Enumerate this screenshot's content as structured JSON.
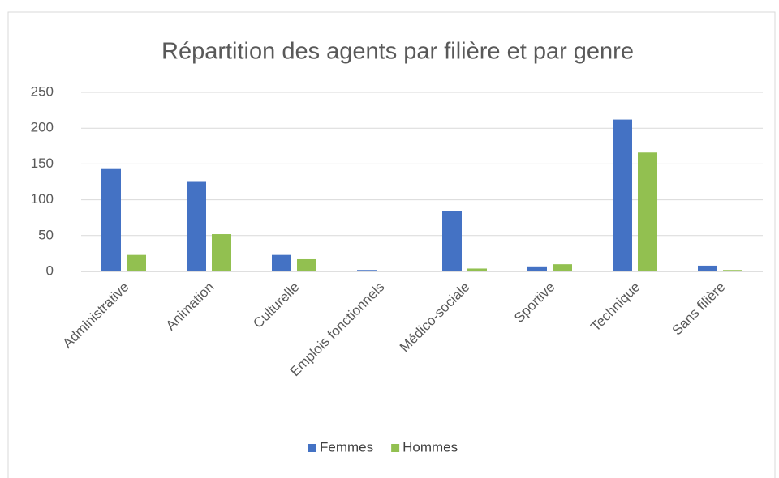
{
  "chart_data": {
    "type": "bar",
    "title": "Répartition des agents par filière et par genre",
    "categories": [
      "Administrative",
      "Animation",
      "Culturelle",
      "Emplois fonctionnels",
      "Médico-sociale",
      "Sportive",
      "Technique",
      "Sans filière"
    ],
    "series": [
      {
        "name": "Femmes",
        "color": "#4472c4",
        "values": [
          144,
          125,
          23,
          2,
          84,
          7,
          212,
          8
        ]
      },
      {
        "name": "Hommes",
        "color": "#92c050",
        "values": [
          23,
          52,
          17,
          0,
          4,
          10,
          166,
          2
        ]
      }
    ],
    "ylim": [
      0,
      250
    ],
    "yticks": [
      0,
      50,
      100,
      150,
      200,
      250
    ],
    "grid": true,
    "legend": "bottom"
  }
}
